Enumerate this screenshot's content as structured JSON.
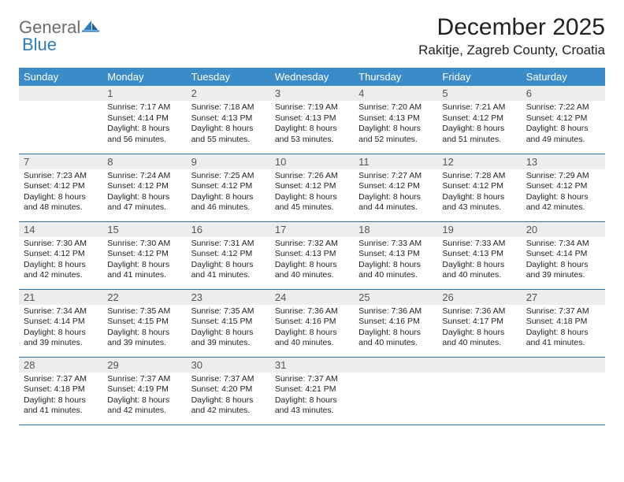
{
  "logo": {
    "text1": "General",
    "text2": "Blue"
  },
  "title": "December 2025",
  "location": "Rakitje, Zagreb County, Croatia",
  "weekdays": [
    "Sunday",
    "Monday",
    "Tuesday",
    "Wednesday",
    "Thursday",
    "Friday",
    "Saturday"
  ],
  "colors": {
    "header_bg": "#3b8bc9",
    "header_text": "#ffffff",
    "daynum_bg": "#ededed",
    "row_divider": "#2e6fa8",
    "logo_gray": "#6b6b6b",
    "logo_blue": "#2e7cc0"
  },
  "weeks": [
    [
      null,
      {
        "n": "1",
        "sr": "7:17 AM",
        "ss": "4:14 PM",
        "dl": "8 hours and 56 minutes."
      },
      {
        "n": "2",
        "sr": "7:18 AM",
        "ss": "4:13 PM",
        "dl": "8 hours and 55 minutes."
      },
      {
        "n": "3",
        "sr": "7:19 AM",
        "ss": "4:13 PM",
        "dl": "8 hours and 53 minutes."
      },
      {
        "n": "4",
        "sr": "7:20 AM",
        "ss": "4:13 PM",
        "dl": "8 hours and 52 minutes."
      },
      {
        "n": "5",
        "sr": "7:21 AM",
        "ss": "4:12 PM",
        "dl": "8 hours and 51 minutes."
      },
      {
        "n": "6",
        "sr": "7:22 AM",
        "ss": "4:12 PM",
        "dl": "8 hours and 49 minutes."
      }
    ],
    [
      {
        "n": "7",
        "sr": "7:23 AM",
        "ss": "4:12 PM",
        "dl": "8 hours and 48 minutes."
      },
      {
        "n": "8",
        "sr": "7:24 AM",
        "ss": "4:12 PM",
        "dl": "8 hours and 47 minutes."
      },
      {
        "n": "9",
        "sr": "7:25 AM",
        "ss": "4:12 PM",
        "dl": "8 hours and 46 minutes."
      },
      {
        "n": "10",
        "sr": "7:26 AM",
        "ss": "4:12 PM",
        "dl": "8 hours and 45 minutes."
      },
      {
        "n": "11",
        "sr": "7:27 AM",
        "ss": "4:12 PM",
        "dl": "8 hours and 44 minutes."
      },
      {
        "n": "12",
        "sr": "7:28 AM",
        "ss": "4:12 PM",
        "dl": "8 hours and 43 minutes."
      },
      {
        "n": "13",
        "sr": "7:29 AM",
        "ss": "4:12 PM",
        "dl": "8 hours and 42 minutes."
      }
    ],
    [
      {
        "n": "14",
        "sr": "7:30 AM",
        "ss": "4:12 PM",
        "dl": "8 hours and 42 minutes."
      },
      {
        "n": "15",
        "sr": "7:30 AM",
        "ss": "4:12 PM",
        "dl": "8 hours and 41 minutes."
      },
      {
        "n": "16",
        "sr": "7:31 AM",
        "ss": "4:12 PM",
        "dl": "8 hours and 41 minutes."
      },
      {
        "n": "17",
        "sr": "7:32 AM",
        "ss": "4:13 PM",
        "dl": "8 hours and 40 minutes."
      },
      {
        "n": "18",
        "sr": "7:33 AM",
        "ss": "4:13 PM",
        "dl": "8 hours and 40 minutes."
      },
      {
        "n": "19",
        "sr": "7:33 AM",
        "ss": "4:13 PM",
        "dl": "8 hours and 40 minutes."
      },
      {
        "n": "20",
        "sr": "7:34 AM",
        "ss": "4:14 PM",
        "dl": "8 hours and 39 minutes."
      }
    ],
    [
      {
        "n": "21",
        "sr": "7:34 AM",
        "ss": "4:14 PM",
        "dl": "8 hours and 39 minutes."
      },
      {
        "n": "22",
        "sr": "7:35 AM",
        "ss": "4:15 PM",
        "dl": "8 hours and 39 minutes."
      },
      {
        "n": "23",
        "sr": "7:35 AM",
        "ss": "4:15 PM",
        "dl": "8 hours and 39 minutes."
      },
      {
        "n": "24",
        "sr": "7:36 AM",
        "ss": "4:16 PM",
        "dl": "8 hours and 40 minutes."
      },
      {
        "n": "25",
        "sr": "7:36 AM",
        "ss": "4:16 PM",
        "dl": "8 hours and 40 minutes."
      },
      {
        "n": "26",
        "sr": "7:36 AM",
        "ss": "4:17 PM",
        "dl": "8 hours and 40 minutes."
      },
      {
        "n": "27",
        "sr": "7:37 AM",
        "ss": "4:18 PM",
        "dl": "8 hours and 41 minutes."
      }
    ],
    [
      {
        "n": "28",
        "sr": "7:37 AM",
        "ss": "4:18 PM",
        "dl": "8 hours and 41 minutes."
      },
      {
        "n": "29",
        "sr": "7:37 AM",
        "ss": "4:19 PM",
        "dl": "8 hours and 42 minutes."
      },
      {
        "n": "30",
        "sr": "7:37 AM",
        "ss": "4:20 PM",
        "dl": "8 hours and 42 minutes."
      },
      {
        "n": "31",
        "sr": "7:37 AM",
        "ss": "4:21 PM",
        "dl": "8 hours and 43 minutes."
      },
      null,
      null,
      null
    ]
  ]
}
